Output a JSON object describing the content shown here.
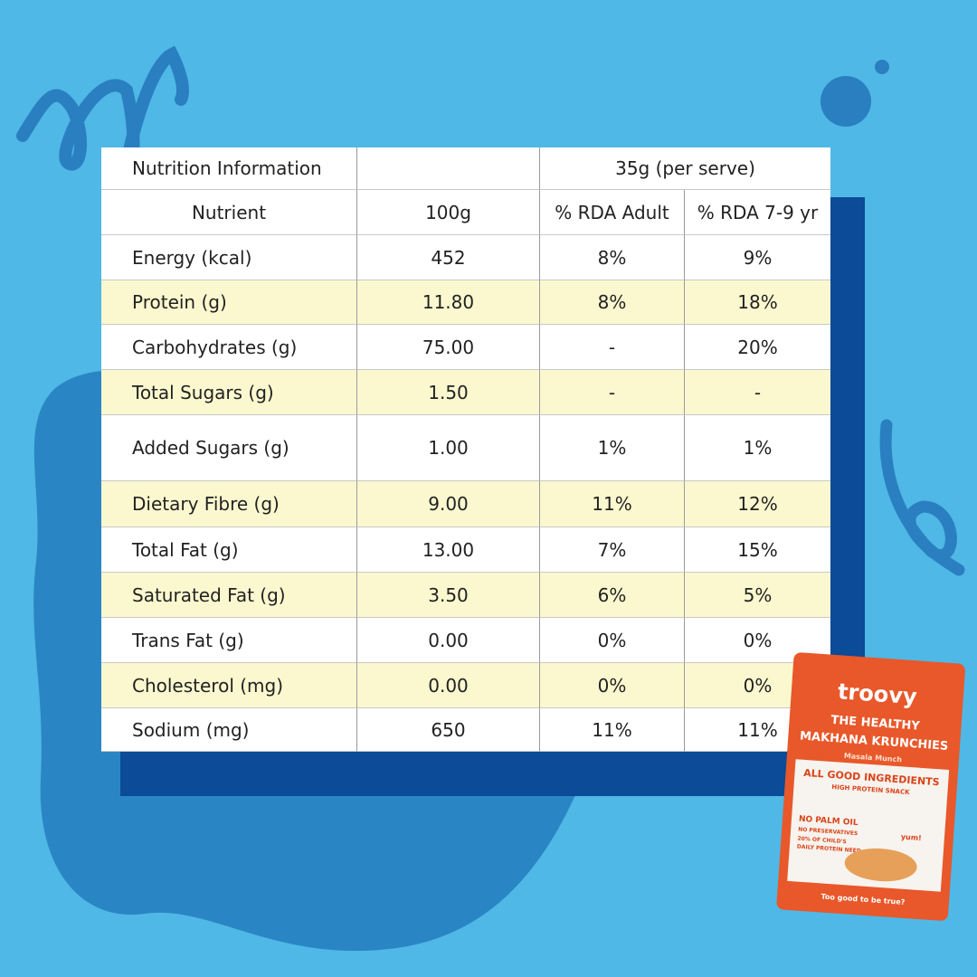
{
  "table": {
    "header": [
      [
        "Nutrition Information",
        null,
        "35g (per serve)",
        null
      ],
      [
        "Nutrient",
        "100g",
        "% RDA Adult",
        "% RDA 7-9 yr"
      ]
    ],
    "rows": [
      [
        "Energy (kcal)",
        "452",
        "8%",
        "9%"
      ],
      [
        "Protein (g)",
        "11.80",
        "8%",
        "18%"
      ],
      [
        "Carbohydrates (g)",
        "75.00",
        "-",
        "20%"
      ],
      [
        "Total Sugars (g)",
        "1.50",
        "-",
        "-"
      ],
      [
        "Added Sugars (g)",
        "1.00",
        "1%",
        "1%"
      ],
      [
        "Dietary Fibre (g)",
        "9.00",
        "11%",
        "12%"
      ],
      [
        "Total Fat (g)",
        "13.00",
        "7%",
        "15%"
      ],
      [
        "Saturated Fat (g)",
        "3.50",
        "6%",
        "5%"
      ],
      [
        "Trans Fat (g)",
        "0.00",
        "0%",
        "0%"
      ],
      [
        "Cholesterol (mg)",
        "0.00",
        "0%",
        "0%"
      ],
      [
        "Sodium (mg)",
        "650",
        "11%",
        "11%"
      ]
    ]
  },
  "packet": {
    "brand": "troovy",
    "line1": "THE HEALTHY",
    "line2": "MAKHANA KRUNCHIES",
    "flavour": "Masala Munch",
    "claim": "ALL GOOD INGREDIENTS",
    "sub": "HIGH PROTEIN SNACK",
    "badge1": "NO PALM OIL",
    "badge2": "NO PRESERVATIVES",
    "badge3": "20% OF CHILD'S",
    "badge4": "DAILY PROTEIN NEED",
    "yum": "yum!",
    "tagline": "Too good to be true?"
  }
}
